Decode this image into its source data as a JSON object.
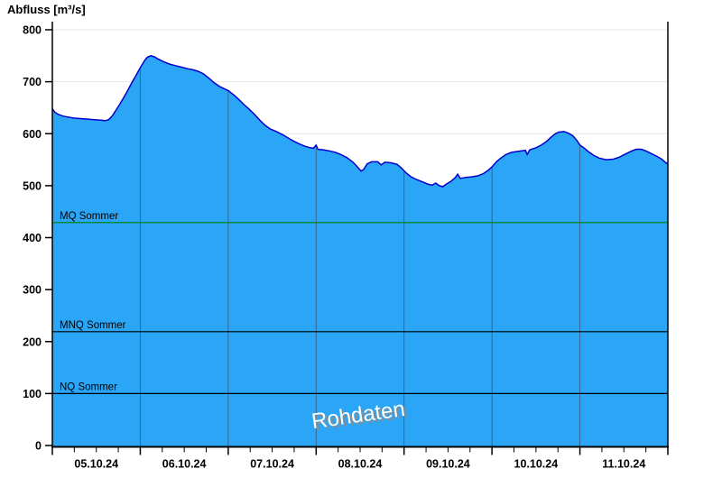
{
  "chart_data": {
    "type": "area",
    "title": "Abfluss [m³/s]",
    "ylabel": "Abfluss [m³/s]",
    "ylim": [
      0,
      800
    ],
    "y_ticks": [
      0,
      100,
      200,
      300,
      400,
      500,
      600,
      700,
      800
    ],
    "x_days": 7,
    "x_minor_ticks_per_day": 4,
    "x_tick_labels": [
      "05.10.24",
      "06.10.24",
      "07.10.24",
      "08.10.24",
      "09.10.24",
      "10.10.24",
      "11.10.24"
    ],
    "grid": true,
    "watermark": "Rohdaten",
    "series": [
      {
        "name": "Abfluss Rohdaten",
        "unit": "m³/s",
        "points": [
          [
            0.0,
            648
          ],
          [
            0.03,
            641
          ],
          [
            0.07,
            637
          ],
          [
            0.12,
            634
          ],
          [
            0.18,
            632
          ],
          [
            0.25,
            630
          ],
          [
            0.32,
            629
          ],
          [
            0.4,
            628
          ],
          [
            0.48,
            627
          ],
          [
            0.55,
            626
          ],
          [
            0.6,
            625
          ],
          [
            0.64,
            627
          ],
          [
            0.68,
            634
          ],
          [
            0.72,
            644
          ],
          [
            0.76,
            655
          ],
          [
            0.8,
            666
          ],
          [
            0.85,
            681
          ],
          [
            0.9,
            697
          ],
          [
            0.95,
            712
          ],
          [
            1.0,
            727
          ],
          [
            1.05,
            741
          ],
          [
            1.08,
            747
          ],
          [
            1.12,
            750
          ],
          [
            1.16,
            748
          ],
          [
            1.2,
            744
          ],
          [
            1.26,
            739
          ],
          [
            1.33,
            734
          ],
          [
            1.4,
            731
          ],
          [
            1.47,
            728
          ],
          [
            1.54,
            725
          ],
          [
            1.6,
            723
          ],
          [
            1.66,
            720
          ],
          [
            1.72,
            715
          ],
          [
            1.78,
            707
          ],
          [
            1.84,
            698
          ],
          [
            1.9,
            691
          ],
          [
            1.96,
            686
          ],
          [
            2.0,
            683
          ],
          [
            2.06,
            675
          ],
          [
            2.12,
            666
          ],
          [
            2.18,
            656
          ],
          [
            2.24,
            647
          ],
          [
            2.3,
            637
          ],
          [
            2.36,
            626
          ],
          [
            2.42,
            616
          ],
          [
            2.48,
            609
          ],
          [
            2.55,
            604
          ],
          [
            2.62,
            598
          ],
          [
            2.68,
            592
          ],
          [
            2.74,
            586
          ],
          [
            2.8,
            581
          ],
          [
            2.87,
            576
          ],
          [
            2.93,
            573
          ],
          [
            2.97,
            572
          ],
          [
            3.0,
            578
          ],
          [
            3.02,
            570
          ],
          [
            3.08,
            569
          ],
          [
            3.15,
            567
          ],
          [
            3.22,
            564
          ],
          [
            3.28,
            560
          ],
          [
            3.35,
            554
          ],
          [
            3.42,
            545
          ],
          [
            3.47,
            536
          ],
          [
            3.51,
            528
          ],
          [
            3.54,
            531
          ],
          [
            3.58,
            542
          ],
          [
            3.63,
            546
          ],
          [
            3.7,
            546
          ],
          [
            3.74,
            540
          ],
          [
            3.78,
            545
          ],
          [
            3.85,
            544
          ],
          [
            3.92,
            541
          ],
          [
            3.97,
            534
          ],
          [
            4.02,
            525
          ],
          [
            4.08,
            517
          ],
          [
            4.14,
            512
          ],
          [
            4.2,
            508
          ],
          [
            4.27,
            503
          ],
          [
            4.32,
            501
          ],
          [
            4.36,
            505
          ],
          [
            4.4,
            500
          ],
          [
            4.44,
            498
          ],
          [
            4.48,
            503
          ],
          [
            4.53,
            508
          ],
          [
            4.58,
            515
          ],
          [
            4.61,
            522
          ],
          [
            4.64,
            514
          ],
          [
            4.7,
            516
          ],
          [
            4.77,
            517
          ],
          [
            4.84,
            519
          ],
          [
            4.9,
            523
          ],
          [
            4.96,
            530
          ],
          [
            5.0,
            536
          ],
          [
            5.05,
            546
          ],
          [
            5.1,
            553
          ],
          [
            5.16,
            560
          ],
          [
            5.22,
            564
          ],
          [
            5.3,
            566
          ],
          [
            5.38,
            568
          ],
          [
            5.4,
            560
          ],
          [
            5.43,
            569
          ],
          [
            5.5,
            573
          ],
          [
            5.56,
            578
          ],
          [
            5.62,
            585
          ],
          [
            5.67,
            593
          ],
          [
            5.72,
            600
          ],
          [
            5.76,
            603
          ],
          [
            5.82,
            604
          ],
          [
            5.87,
            601
          ],
          [
            5.92,
            596
          ],
          [
            5.97,
            586
          ],
          [
            6.0,
            578
          ],
          [
            6.05,
            572
          ],
          [
            6.1,
            565
          ],
          [
            6.16,
            558
          ],
          [
            6.22,
            553
          ],
          [
            6.3,
            550
          ],
          [
            6.38,
            551
          ],
          [
            6.45,
            555
          ],
          [
            6.52,
            561
          ],
          [
            6.58,
            566
          ],
          [
            6.64,
            570
          ],
          [
            6.7,
            570
          ],
          [
            6.76,
            566
          ],
          [
            6.82,
            561
          ],
          [
            6.88,
            556
          ],
          [
            6.93,
            551
          ],
          [
            6.97,
            545
          ],
          [
            7.0,
            541
          ]
        ]
      }
    ],
    "reference_lines": [
      {
        "id": "mq-sommer",
        "label": "MQ Sommer",
        "value": 429,
        "color": "#008000"
      },
      {
        "id": "mnq-sommer",
        "label": "MNQ Sommer",
        "value": 219,
        "color": "#000000"
      },
      {
        "id": "nq-sommer",
        "label": "NQ Sommer",
        "value": 100,
        "color": "#000000"
      }
    ],
    "colors": {
      "fill": "#2ba6f6",
      "line": "#0000cc",
      "day_gridline": "#3a648f",
      "h_gridline": "#e5e5e5",
      "axis": "#000000",
      "text": "#000000",
      "watermark_fill": "#ffffff",
      "watermark_shadow": "#8c8c8c"
    },
    "legend_position": "none"
  }
}
